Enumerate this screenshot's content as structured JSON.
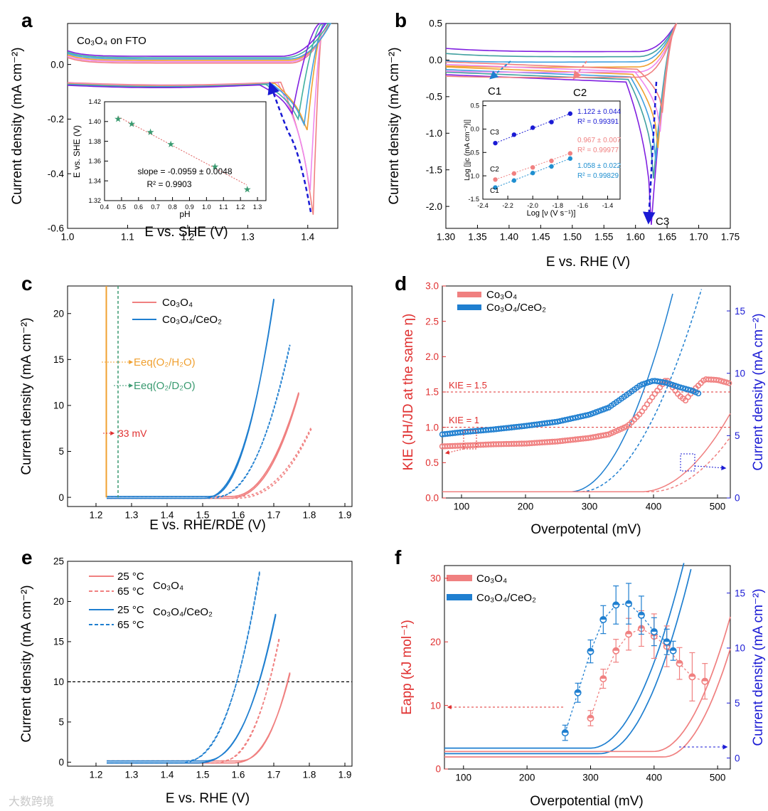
{
  "watermark": "大数跨境",
  "panels": {
    "a": {
      "letter": "a",
      "label": "Co₃O₄ on FTO",
      "xlabel": "E vs. SHE (V)",
      "ylabel": "Current density (mA cm⁻²)",
      "xticks": [
        "1.0",
        "1.1",
        "1.2",
        "1.3",
        "1.4"
      ],
      "yticks": [
        "0.0",
        "-0.2",
        "-0.4",
        "-0.6"
      ],
      "inset": {
        "xlabel": "pH",
        "ylabel": "E vs. SHE (V)",
        "xticks": [
          "0.4",
          "0.5",
          "0.6",
          "0.7",
          "0.8",
          "0.9",
          "1.0",
          "1.1",
          "1.2",
          "1.3"
        ],
        "yticks": [
          "1.42",
          "1.40",
          "1.38",
          "1.36",
          "1.34",
          "1.32"
        ],
        "slope_text": "slope = -0.0959 ± 0.0048",
        "r2_text": "R² = 0.9903"
      }
    },
    "b": {
      "letter": "b",
      "xlabel": "E vs. RHE (V)",
      "ylabel": "Current density (mA cm⁻²)",
      "xticks": [
        "1.30",
        "1.35",
        "1.40",
        "1.45",
        "1.50",
        "1.55",
        "1.60",
        "1.65",
        "1.70",
        "1.75"
      ],
      "yticks": [
        "0.5",
        "0.0",
        "-0.5",
        "-1.0",
        "-1.5",
        "-2.0"
      ],
      "labels": [
        "C1",
        "C2",
        "C3"
      ],
      "inset": {
        "xlabel": "Log [ν (V s⁻¹)]",
        "ylabel": "Log [|jc (mA cm⁻²)|]",
        "xticks": [
          "-2.4",
          "-2.2",
          "-2.0",
          "-1.8",
          "-1.6",
          "-1.4"
        ],
        "yticks": [
          "0.5",
          "0.0",
          "-0.5",
          "-1.0",
          "-1.5"
        ],
        "fits": [
          {
            "name": "C3",
            "slope": "1.122 ± 0.044",
            "r2": "R² = 0.99391",
            "color": "#1a1ad4"
          },
          {
            "name": "C2",
            "slope": "0.967 ± 0.007",
            "r2": "R² = 0.99977",
            "color": "#f08080"
          },
          {
            "name": "C1",
            "slope": "1.058 ± 0.022",
            "r2": "R² = 0.99829",
            "color": "#1f8fd0"
          }
        ]
      }
    },
    "c": {
      "letter": "c",
      "xlabel": "E vs. RHE/RDE (V)",
      "ylabel": "Current density (mA cm⁻²)",
      "xticks": [
        "1.2",
        "1.3",
        "1.4",
        "1.5",
        "1.6",
        "1.7",
        "1.8",
        "1.9"
      ],
      "yticks": [
        "0",
        "5",
        "10",
        "15",
        "20"
      ],
      "legend": [
        "Co₃O₄",
        "Co₃O₄/CeO₂"
      ],
      "annotations": [
        "Eeq(O₂/H₂O)",
        "Eeq(O₂/D₂O)",
        "33 mV"
      ]
    },
    "d": {
      "letter": "d",
      "xlabel": "Overpotental (mV)",
      "ylabel_left": "KIE (JH/JD at the same η)",
      "ylabel_right": "Current density (mA cm⁻²)",
      "xticks": [
        "100",
        "200",
        "300",
        "400",
        "500"
      ],
      "yticks_left": [
        "0.0",
        "0.5",
        "1.0",
        "1.5",
        "2.0",
        "2.5",
        "3.0"
      ],
      "yticks_right": [
        "0",
        "5",
        "10",
        "15"
      ],
      "legend": [
        "Co₃O₄",
        "Co₃O₄/CeO₂"
      ],
      "annotations": [
        "KIE = 1.5",
        "KIE = 1"
      ]
    },
    "e": {
      "letter": "e",
      "xlabel": "E vs. RHE (V)",
      "ylabel": "Current density (mA cm⁻²)",
      "xticks": [
        "1.2",
        "1.3",
        "1.4",
        "1.5",
        "1.6",
        "1.7",
        "1.8",
        "1.9"
      ],
      "yticks": [
        "0",
        "5",
        "10",
        "15",
        "20",
        "25"
      ],
      "legend": [
        "25 °C",
        "65 °C",
        "25 °C",
        "65 °C"
      ],
      "legend_groups": [
        "Co₃O₄",
        "Co₃O₄/CeO₂"
      ]
    },
    "f": {
      "letter": "f",
      "xlabel": "Overpotential (mV)",
      "ylabel_left": "Eapp (kJ mol⁻¹)",
      "ylabel_right": "Current density (mA cm⁻²)",
      "xticks": [
        "100",
        "200",
        "300",
        "400",
        "500"
      ],
      "yticks_left": [
        "0",
        "10",
        "20",
        "30"
      ],
      "yticks_right": [
        "0",
        "5",
        "10",
        "15"
      ],
      "legend": [
        "Co₃O₄",
        "Co₃O₄/CeO₂"
      ]
    }
  },
  "chart_data": [
    {
      "panel": "a",
      "type": "line",
      "xlim": [
        1.0,
        1.45
      ],
      "ylim": [
        -0.6,
        0.15
      ],
      "series": [
        {
          "color": "#f08080",
          "peak": [
            1.405,
            -0.55
          ]
        },
        {
          "color": "#ee88ee",
          "peak": [
            1.4,
            -0.46
          ]
        },
        {
          "color": "#f0a030",
          "peak": [
            1.395,
            -0.24
          ]
        },
        {
          "color": "#40a0e0",
          "peak": [
            1.39,
            -0.22
          ]
        },
        {
          "color": "#40b0a0",
          "peak": [
            1.38,
            -0.2
          ]
        },
        {
          "color": "#8020e0",
          "peak": [
            1.37,
            -0.18
          ]
        }
      ],
      "inset_points": {
        "pH": [
          0.48,
          0.56,
          0.67,
          0.79,
          1.05,
          1.24
        ],
        "E": [
          1.4025,
          1.3975,
          1.389,
          1.377,
          1.354,
          1.331
        ]
      }
    },
    {
      "panel": "b",
      "type": "line",
      "xlim": [
        1.3,
        1.75
      ],
      "ylim": [
        -2.3,
        0.5
      ],
      "peaks": [
        {
          "color": "#8020e0",
          "y": -2.25
        },
        {
          "color": "#40a0a0",
          "y": -1.62
        },
        {
          "color": "#40a0e0",
          "y": -1.38
        },
        {
          "color": "#f0a030",
          "y": -1.2
        },
        {
          "color": "#ee88ee",
          "y": -0.98
        },
        {
          "color": "#f08080",
          "y": -0.72
        }
      ],
      "inset_points": {
        "logv": [
          -2.3,
          -2.15,
          -2.0,
          -1.85,
          -1.7
        ],
        "C3": [
          -0.3,
          -0.12,
          0.03,
          0.15,
          0.33
        ],
        "C2": [
          -1.08,
          -0.95,
          -0.82,
          -0.68,
          -0.52
        ],
        "C1": [
          -1.25,
          -1.1,
          -0.94,
          -0.8,
          -0.63
        ]
      }
    },
    {
      "panel": "c",
      "type": "line",
      "xlim": [
        1.12,
        1.92
      ],
      "ylim": [
        -1,
        23
      ],
      "series": [
        {
          "name": "Co₃O₄",
          "color": "#f08080",
          "max_x": 1.77,
          "max_y": 11.3
        },
        {
          "name": "Co₃O₄/CeO₂",
          "color": "#1f7fd0",
          "max_x": 1.7,
          "max_y": 21.5
        }
      ],
      "vlines": [
        1.229,
        1.262
      ]
    },
    {
      "panel": "d",
      "type": "scatter",
      "xlim": [
        70,
        520
      ],
      "ylim_left": [
        0,
        3.0
      ],
      "ylim_right": [
        0,
        17
      ],
      "series": [
        {
          "name": "Co₃O₄",
          "color": "#f08080",
          "x": [
            70,
            100,
            150,
            200,
            250,
            300,
            330,
            360,
            380,
            400,
            420,
            440,
            450,
            460,
            480,
            500,
            520
          ],
          "y": [
            0.73,
            0.74,
            0.76,
            0.77,
            0.8,
            0.85,
            0.9,
            1.02,
            1.2,
            1.45,
            1.68,
            1.45,
            1.38,
            1.5,
            1.68,
            1.67,
            1.62
          ]
        },
        {
          "name": "Co₃O₄/CeO₂",
          "color": "#1f7fd0",
          "x": [
            70,
            100,
            150,
            200,
            250,
            300,
            330,
            360,
            380,
            400,
            420,
            440,
            460,
            470
          ],
          "y": [
            0.9,
            0.93,
            0.97,
            1.02,
            1.08,
            1.18,
            1.28,
            1.47,
            1.6,
            1.66,
            1.63,
            1.57,
            1.52,
            1.48
          ]
        }
      ],
      "hlines": [
        1.5,
        1.0
      ]
    },
    {
      "panel": "e",
      "type": "line",
      "xlim": [
        1.12,
        1.92
      ],
      "ylim": [
        -0.5,
        25
      ],
      "series": [
        {
          "name": "Co₃O₄ 25 °C",
          "color": "#f08080",
          "dash": false,
          "max_x": 1.745,
          "max_y": 11
        },
        {
          "name": "Co₃O₄ 65 °C",
          "color": "#f08080",
          "dash": true,
          "max_x": 1.715,
          "max_y": 15.3
        },
        {
          "name": "Co₃O₄/CeO₂ 25 °C",
          "color": "#1f7fd0",
          "dash": false,
          "max_x": 1.705,
          "max_y": 18.3
        },
        {
          "name": "Co₃O₄/CeO₂ 65 °C",
          "color": "#1f7fd0",
          "dash": true,
          "max_x": 1.66,
          "max_y": 23.6
        }
      ],
      "hline": 10
    },
    {
      "panel": "f",
      "type": "scatter",
      "xlim": [
        70,
        520
      ],
      "ylim_left": [
        0,
        32
      ],
      "ylim_right": [
        -1,
        17.5
      ],
      "series": [
        {
          "name": "Co₃O₄",
          "color": "#f08080",
          "x": [
            300,
            320,
            340,
            360,
            380,
            400,
            420,
            440,
            460,
            480
          ],
          "y": [
            8.0,
            14.2,
            18.6,
            21.2,
            22.1,
            20.9,
            19.3,
            16.6,
            14.5,
            13.8
          ],
          "err": [
            1.2,
            1.5,
            1.8,
            2.5,
            2.8,
            3.5,
            3.2,
            2.5,
            3.8,
            2.8
          ]
        },
        {
          "name": "Co₃O₄/CeO₂",
          "color": "#1f7fd0",
          "x": [
            260,
            280,
            300,
            320,
            340,
            360,
            380,
            400,
            420,
            430
          ],
          "y": [
            5.7,
            12.0,
            18.5,
            23.5,
            25.8,
            26.0,
            24.2,
            21.6,
            20.0,
            18.6
          ],
          "err": [
            1.2,
            1.5,
            1.8,
            2.2,
            3.0,
            3.2,
            3.0,
            2.2,
            2.0,
            1.5
          ]
        }
      ]
    }
  ]
}
